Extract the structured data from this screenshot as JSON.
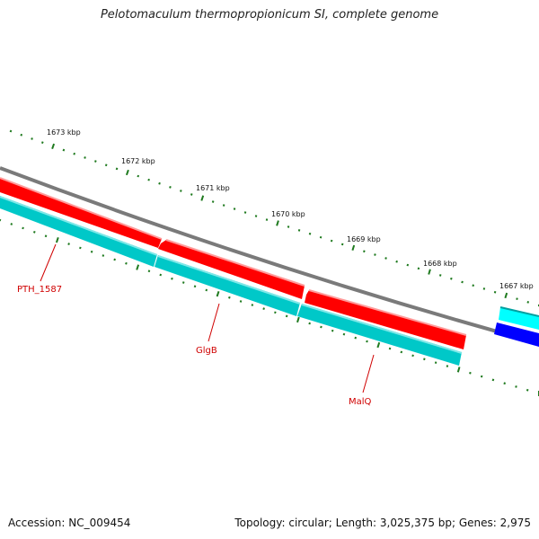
{
  "title": "Pelotomaculum thermopropionicum SI, complete genome",
  "footer": {
    "accession": "Accession: NC_009454",
    "stats": "Topology: circular; Length: 3,025,375 bp; Genes: 2,975"
  },
  "scale": {
    "unit": "kbp",
    "labels": [
      "1673 kbp",
      "1672 kbp",
      "1671 kbp",
      "1670 kbp",
      "1669 kbp",
      "1668 kbp",
      "1667 kbp"
    ]
  },
  "genes": [
    {
      "label": "PTH_1587",
      "strand": "reverse"
    },
    {
      "label": "GlgB",
      "strand": "reverse"
    },
    {
      "label": "MalQ",
      "strand": "reverse"
    }
  ],
  "colors": {
    "backbone": "#7a7a7a",
    "cds_forward": "#ff0000",
    "cds_track": "#00c8c8",
    "ticks": "#1f7a1f",
    "gene_label": "#d00000",
    "forward_gene": "#0000ff",
    "forward_track": "#00ffff"
  }
}
